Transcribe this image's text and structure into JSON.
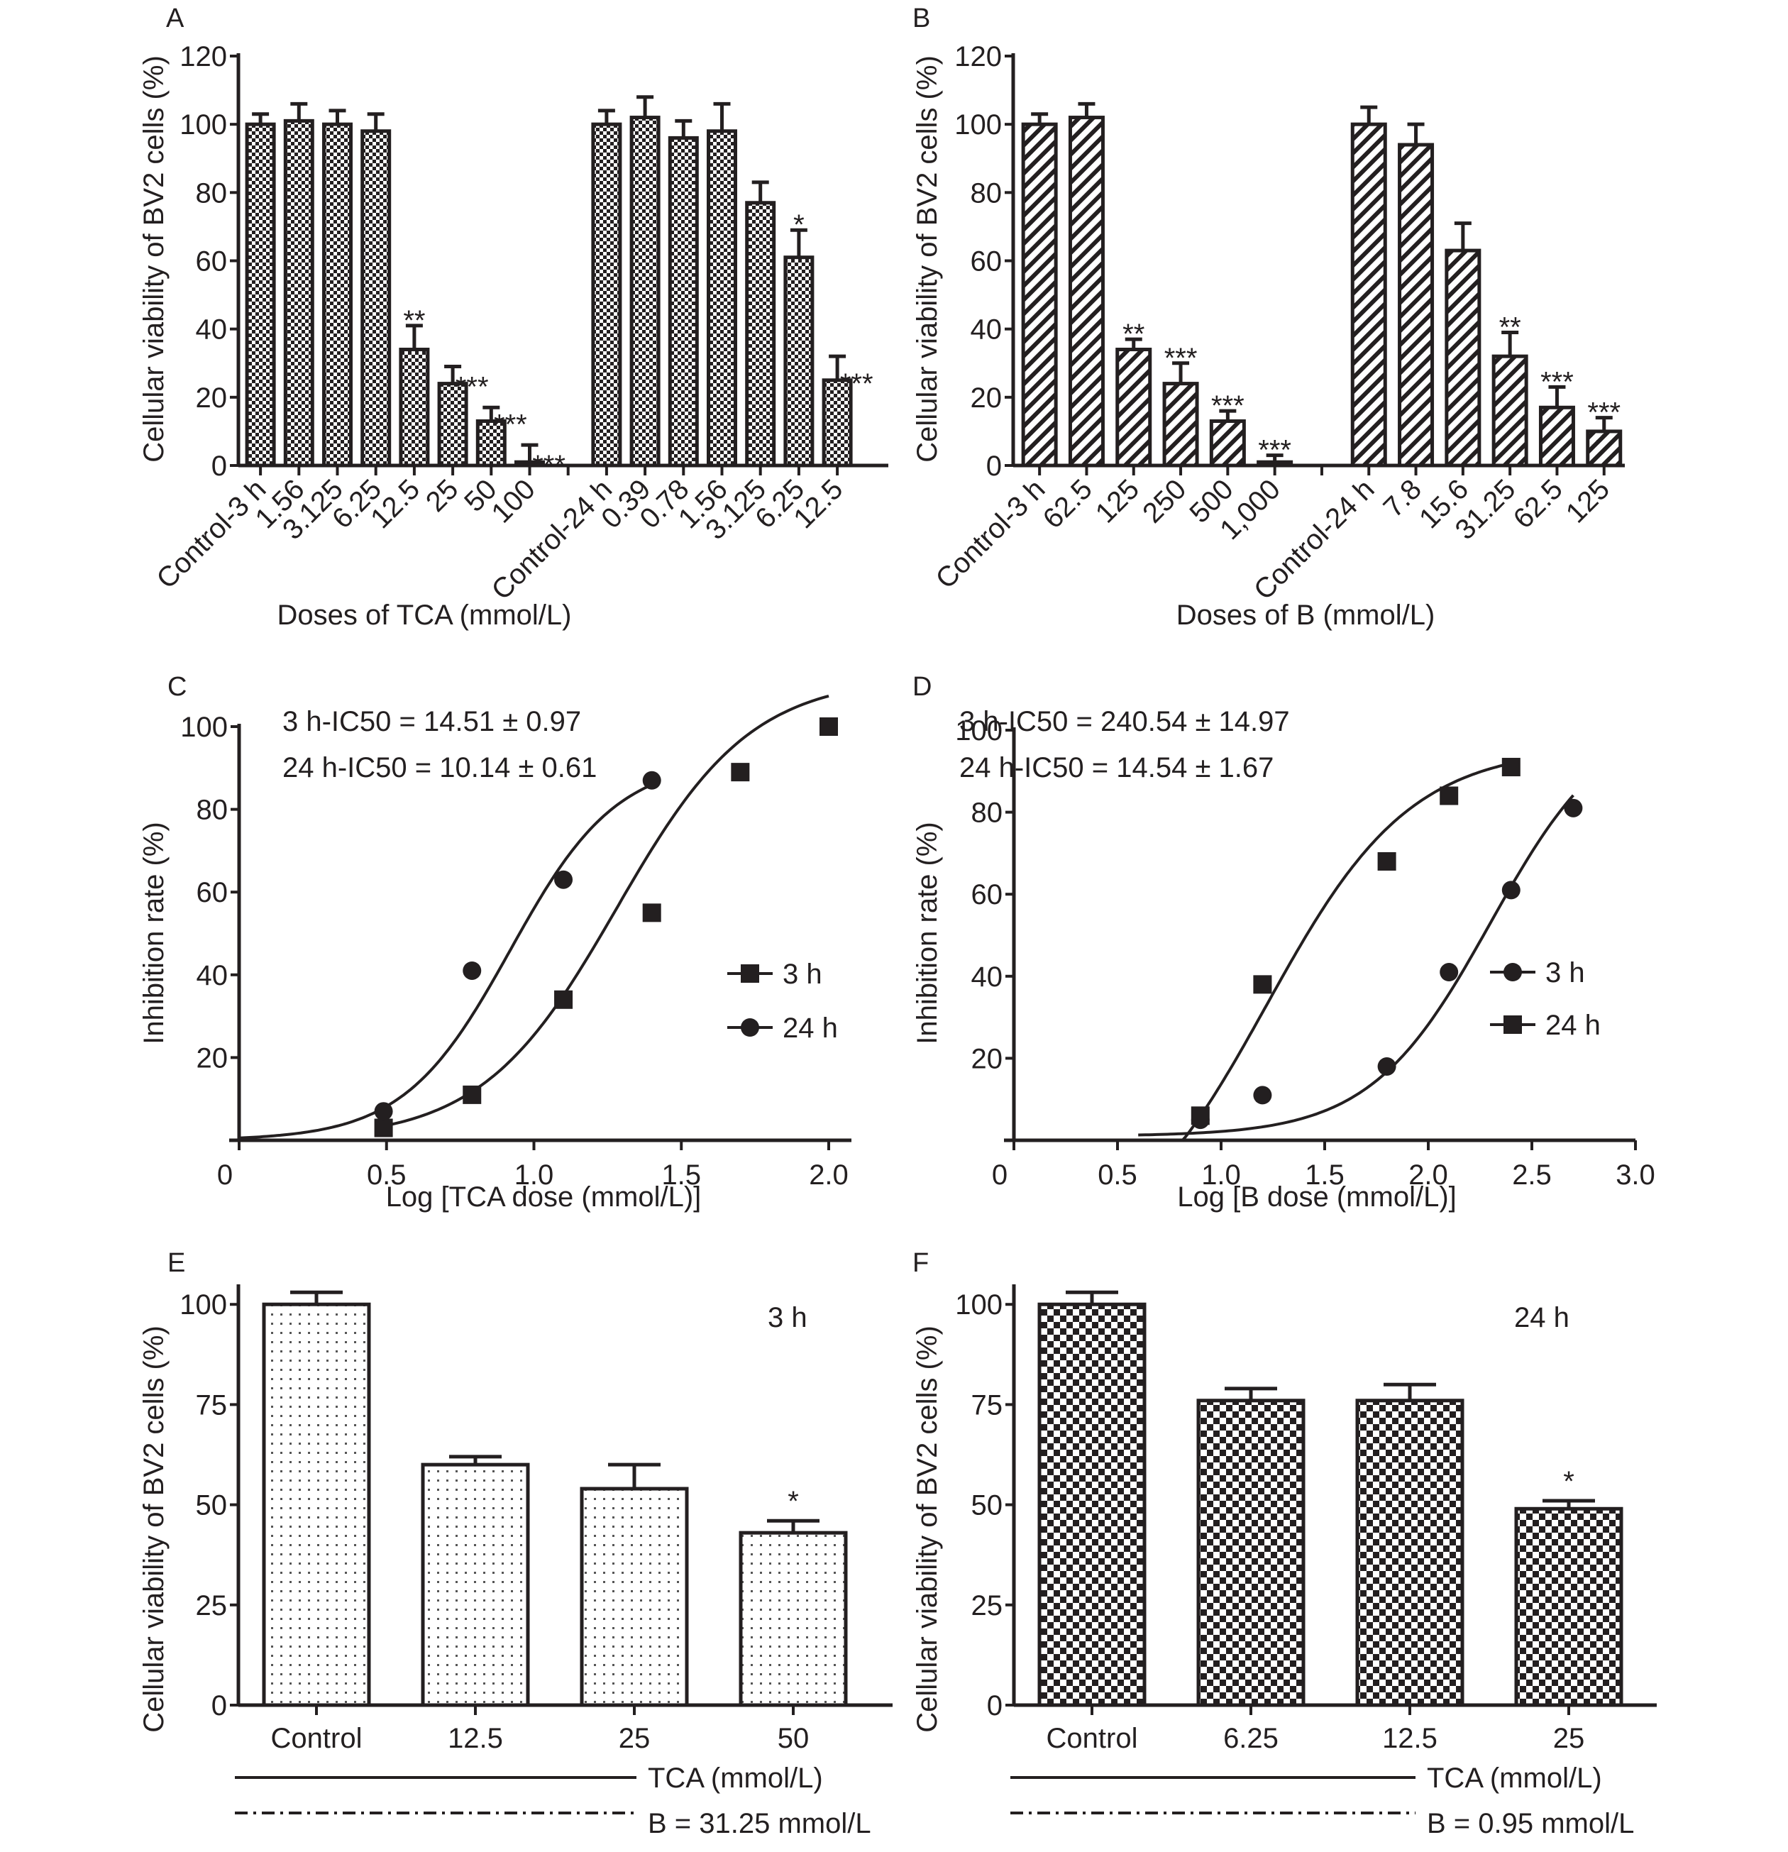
{
  "figure_title": "",
  "chart_data": [
    {
      "panel": "A",
      "type": "bar",
      "pattern": "fine-checker",
      "xlabel": "Doses of TCA (mmol/L)",
      "ylabel": "Cellular viability of BV2 cells (%)",
      "ylim": [
        0,
        120
      ],
      "yticks": [
        "0",
        "20",
        "40",
        "60",
        "80",
        "100",
        "120"
      ],
      "groups": [
        {
          "name": "3 h",
          "categories": [
            "Control-3 h",
            "1.56",
            "3.125",
            "6.25",
            "12.5",
            "25",
            "50",
            "100"
          ],
          "values": [
            100,
            101,
            100,
            98,
            34,
            24,
            13,
            1
          ],
          "errors": [
            3,
            5,
            4,
            5,
            7,
            5,
            4,
            5
          ],
          "significance": [
            "",
            "",
            "",
            "",
            "**",
            "***",
            "***",
            "***"
          ]
        },
        {
          "name": "24 h",
          "categories": [
            "Control-24 h",
            "0.39",
            "0.78",
            "1.56",
            "3.125",
            "6.25",
            "12.5"
          ],
          "values": [
            100,
            102,
            96,
            98,
            77,
            61,
            25
          ],
          "errors": [
            4,
            6,
            5,
            8,
            6,
            8,
            7
          ],
          "significance": [
            "",
            "",
            "",
            "",
            "",
            "*",
            "***"
          ]
        }
      ]
    },
    {
      "panel": "B",
      "type": "bar",
      "pattern": "diagonal-hatch",
      "xlabel": "Doses of B (mmol/L)",
      "ylabel": "Cellular viability of BV2 cells (%)",
      "ylim": [
        0,
        120
      ],
      "yticks": [
        "0",
        "20",
        "40",
        "60",
        "80",
        "100",
        "120"
      ],
      "groups": [
        {
          "name": "3 h",
          "categories": [
            "Control-3 h",
            "62.5",
            "125",
            "250",
            "500",
            "1,000"
          ],
          "values": [
            100,
            102,
            34,
            24,
            13,
            1
          ],
          "errors": [
            3,
            4,
            3,
            6,
            3,
            2
          ],
          "significance": [
            "",
            "",
            "**",
            "***",
            "***",
            "***"
          ]
        },
        {
          "name": "24 h",
          "categories": [
            "Control-24 h",
            "7.8",
            "15.6",
            "31.25",
            "62.5",
            "125"
          ],
          "values": [
            100,
            94,
            63,
            32,
            17,
            10
          ],
          "errors": [
            5,
            6,
            8,
            7,
            6,
            4
          ],
          "significance": [
            "",
            "",
            "",
            "**",
            "***",
            "***"
          ]
        }
      ]
    },
    {
      "panel": "C",
      "type": "scatter",
      "xlabel": "Log [TCA dose (mmol/L)]",
      "ylabel": "Inhibition rate (%)",
      "xlim": [
        0,
        2.1
      ],
      "ylim": [
        0,
        100
      ],
      "xticks": [
        "0",
        "0.5",
        "1.0",
        "1.5",
        "2.0"
      ],
      "xtick_values": [
        0,
        0.5,
        1.0,
        1.5,
        2.0
      ],
      "yticks": [
        "20",
        "40",
        "60",
        "80",
        "100"
      ],
      "ytick_values": [
        20,
        40,
        60,
        80,
        100
      ],
      "annotations": [
        "3 h-IC50 = 14.51 ± 0.97",
        "24 h-IC50 = 10.14 ± 0.61"
      ],
      "legend_position": "right",
      "series": [
        {
          "name": "3 h",
          "marker": "square",
          "x": [
            0.49,
            0.79,
            1.1,
            1.4,
            1.7,
            2.0
          ],
          "y": [
            3,
            11,
            34,
            55,
            89,
            100
          ],
          "fit": {
            "bottom": 0,
            "top": 112,
            "logec50": 1.28,
            "hill": 1.9,
            "xrange": [
              0.5,
              2.0
            ]
          }
        },
        {
          "name": "24 h",
          "marker": "circle",
          "x": [
            0.49,
            0.79,
            1.1,
            1.4
          ],
          "y": [
            7,
            41,
            63,
            87
          ],
          "fit": {
            "bottom": 0,
            "top": 92,
            "logec50": 0.92,
            "hill": 2.4,
            "xrange": [
              0.0,
              1.4
            ]
          }
        }
      ]
    },
    {
      "panel": "D",
      "type": "scatter",
      "xlabel": "Log [B dose (mmol/L)]",
      "ylabel": "Inhibition rate (%)",
      "xlim": [
        0,
        3.0
      ],
      "ylim": [
        0,
        100
      ],
      "xticks": [
        "0",
        "0.5",
        "1.0",
        "1.5",
        "2.0",
        "2.5",
        "3.0"
      ],
      "xtick_values": [
        0,
        0.5,
        1.0,
        1.5,
        2.0,
        2.5,
        3.0
      ],
      "yticks": [
        "20",
        "40",
        "60",
        "80",
        "100"
      ],
      "ytick_values": [
        20,
        40,
        60,
        80,
        100
      ],
      "annotations": [
        "3 h-IC50 = 240.54 ± 14.97",
        "24 h-IC50 = 14.54 ± 1.67"
      ],
      "legend_position": "right",
      "series": [
        {
          "name": "3 h",
          "marker": "circle",
          "x": [
            0.9,
            1.2,
            1.8,
            2.1,
            2.4,
            2.7
          ],
          "y": [
            5,
            11,
            18,
            41,
            61,
            81
          ],
          "fit": {
            "bottom": 1,
            "top": 105,
            "logec50": 2.3,
            "hill": 1.5,
            "xrange": [
              0.6,
              2.7
            ]
          }
        },
        {
          "name": "24 h",
          "marker": "square",
          "x": [
            0.9,
            1.2,
            1.8,
            2.1,
            2.4
          ],
          "y": [
            6,
            38,
            68,
            84,
            91
          ],
          "fit": {
            "bottom": -30,
            "top": 96,
            "logec50": 1.22,
            "hill": 1.25,
            "xrange": [
              0.7,
              2.4
            ]
          }
        }
      ]
    },
    {
      "panel": "E",
      "type": "bar",
      "pattern": "dots",
      "xlabel": "",
      "ylabel": "Cellular viability of BV2 cells (%)",
      "ylim": [
        0,
        105
      ],
      "yticks": [
        "0",
        "25",
        "50",
        "75",
        "100"
      ],
      "ytick_values": [
        0,
        25,
        50,
        75,
        100
      ],
      "time_label": "3 h",
      "categories": [
        "Control",
        "12.5",
        "25",
        "50"
      ],
      "values": [
        100,
        60,
        54,
        43
      ],
      "errors": [
        3,
        2,
        6,
        3
      ],
      "significance": [
        "",
        "",
        "",
        "*"
      ],
      "legend": [
        {
          "line": "solid",
          "label": "TCA (mmol/L)"
        },
        {
          "line": "dash-dot",
          "label": "B = 31.25 mmol/L"
        }
      ]
    },
    {
      "panel": "F",
      "type": "bar",
      "pattern": "large-checker",
      "xlabel": "",
      "ylabel": "Cellular viability of BV2 cells (%)",
      "ylim": [
        0,
        105
      ],
      "yticks": [
        "0",
        "25",
        "50",
        "75",
        "100"
      ],
      "ytick_values": [
        0,
        25,
        50,
        75,
        100
      ],
      "time_label": "24 h",
      "categories": [
        "Control",
        "6.25",
        "12.5",
        "25"
      ],
      "values": [
        100,
        76,
        76,
        49
      ],
      "errors": [
        3,
        3,
        4,
        2
      ],
      "significance": [
        "",
        "",
        "",
        "*"
      ],
      "legend": [
        {
          "line": "solid",
          "label": "TCA (mmol/L)"
        },
        {
          "line": "dash-dot",
          "label": "B = 0.95 mmol/L"
        }
      ]
    }
  ]
}
